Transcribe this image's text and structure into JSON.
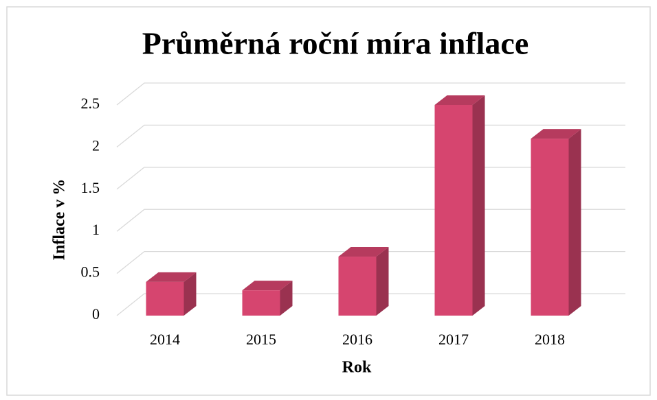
{
  "chart_data": {
    "type": "bar",
    "title": "Průměrná roční míra inflace",
    "x_label": "Rok",
    "y_label": "Inflace v %",
    "categories": [
      "2014",
      "2015",
      "2016",
      "2017",
      "2018"
    ],
    "values": [
      0.4,
      0.3,
      0.7,
      2.5,
      2.1
    ],
    "color": "#d6456f",
    "ylim": [
      0,
      2.5
    ],
    "yticks": [
      0,
      0.5,
      1,
      1.5,
      2,
      2.5
    ],
    "grid": true
  }
}
